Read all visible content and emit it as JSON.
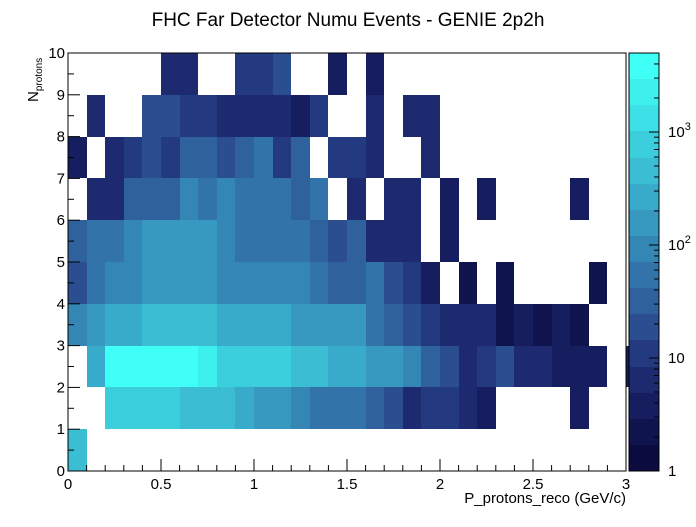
{
  "chart_data": {
    "type": "heatmap",
    "title": "FHC Far Detector Numu Events - GENIE 2p2h",
    "xlabel": "P_protons_reco (GeV/c)",
    "ylabel_main": "N",
    "ylabel_sub": "protons",
    "xlim": [
      0,
      3
    ],
    "ylim": [
      0,
      10
    ],
    "zlim": [
      1,
      5000
    ],
    "z_scale": "log",
    "x_bin_width": 0.1,
    "y_bin_width": 1,
    "x_ticks": [
      0,
      0.5,
      1,
      1.5,
      2,
      2.5,
      3
    ],
    "x_tick_labels": [
      "0",
      "0.5",
      "1",
      "1.5",
      "2",
      "2.5",
      "3"
    ],
    "y_ticks": [
      0,
      1,
      2,
      3,
      4,
      5,
      6,
      7,
      8,
      9,
      10
    ],
    "y_tick_labels": [
      "0",
      "1",
      "2",
      "3",
      "4",
      "5",
      "6",
      "7",
      "8",
      "9",
      "10"
    ],
    "colorbar_ticks": [
      {
        "value": 1,
        "base": "1",
        "exp": ""
      },
      {
        "value": 10,
        "base": "10",
        "exp": ""
      },
      {
        "value": 100,
        "base": "10",
        "exp": "2"
      },
      {
        "value": 1000,
        "base": "10",
        "exp": "3"
      }
    ],
    "palette": [
      "#0b0b3f",
      "#10144e",
      "#161e60",
      "#1d2a70",
      "#243a80",
      "#2b4e90",
      "#2f619d",
      "#3274a9",
      "#3487b5",
      "#3799c0",
      "#39abca",
      "#3bbdd3",
      "#3bcedc",
      "#3ce0e6",
      "#3df0ee",
      "#40fff6"
    ],
    "grid": false,
    "bins": [
      [
        0,
        0,
        500
      ],
      [
        2,
        1,
        800
      ],
      [
        3,
        1,
        800
      ],
      [
        4,
        1,
        800
      ],
      [
        5,
        1,
        800
      ],
      [
        6,
        1,
        500
      ],
      [
        7,
        1,
        500
      ],
      [
        8,
        1,
        350
      ],
      [
        9,
        1,
        300
      ],
      [
        10,
        1,
        200
      ],
      [
        11,
        1,
        150
      ],
      [
        12,
        1,
        100
      ],
      [
        13,
        1,
        70
      ],
      [
        14,
        1,
        60
      ],
      [
        15,
        1,
        50
      ],
      [
        16,
        1,
        30
      ],
      [
        17,
        1,
        20
      ],
      [
        18,
        1,
        8
      ],
      [
        19,
        1,
        10
      ],
      [
        20,
        1,
        10
      ],
      [
        21,
        1,
        5
      ],
      [
        22,
        1,
        3
      ],
      [
        27,
        1,
        3
      ],
      [
        1,
        2,
        300
      ],
      [
        2,
        2,
        3000
      ],
      [
        3,
        2,
        3000
      ],
      [
        4,
        2,
        3000
      ],
      [
        5,
        2,
        3000
      ],
      [
        6,
        2,
        3000
      ],
      [
        7,
        2,
        2000
      ],
      [
        8,
        2,
        1000
      ],
      [
        9,
        2,
        1000
      ],
      [
        10,
        2,
        700
      ],
      [
        11,
        2,
        600
      ],
      [
        12,
        2,
        500
      ],
      [
        13,
        2,
        400
      ],
      [
        14,
        2,
        300
      ],
      [
        15,
        2,
        300
      ],
      [
        16,
        2,
        150
      ],
      [
        17,
        2,
        150
      ],
      [
        18,
        2,
        80
      ],
      [
        19,
        2,
        30
      ],
      [
        20,
        2,
        20
      ],
      [
        21,
        2,
        7
      ],
      [
        22,
        2,
        10
      ],
      [
        23,
        2,
        15
      ],
      [
        24,
        2,
        5
      ],
      [
        25,
        2,
        5
      ],
      [
        26,
        2,
        4
      ],
      [
        27,
        2,
        3
      ],
      [
        28,
        2,
        3
      ],
      [
        30,
        2,
        3
      ],
      [
        0,
        3,
        80
      ],
      [
        1,
        3,
        150
      ],
      [
        2,
        3,
        300
      ],
      [
        3,
        3,
        300
      ],
      [
        4,
        3,
        400
      ],
      [
        5,
        3,
        400
      ],
      [
        6,
        3,
        400
      ],
      [
        7,
        3,
        400
      ],
      [
        8,
        3,
        300
      ],
      [
        9,
        3,
        300
      ],
      [
        10,
        3,
        300
      ],
      [
        11,
        3,
        300
      ],
      [
        12,
        3,
        150
      ],
      [
        13,
        3,
        150
      ],
      [
        14,
        3,
        150
      ],
      [
        15,
        3,
        150
      ],
      [
        16,
        3,
        70
      ],
      [
        17,
        3,
        40
      ],
      [
        18,
        3,
        20
      ],
      [
        19,
        3,
        10
      ],
      [
        20,
        3,
        5
      ],
      [
        21,
        3,
        5
      ],
      [
        22,
        3,
        5
      ],
      [
        23,
        3,
        2
      ],
      [
        24,
        3,
        3
      ],
      [
        25,
        3,
        2
      ],
      [
        26,
        3,
        3
      ],
      [
        27,
        3,
        2
      ],
      [
        0,
        4,
        20
      ],
      [
        1,
        4,
        60
      ],
      [
        2,
        4,
        100
      ],
      [
        3,
        4,
        120
      ],
      [
        4,
        4,
        150
      ],
      [
        5,
        4,
        200
      ],
      [
        6,
        4,
        150
      ],
      [
        7,
        4,
        150
      ],
      [
        8,
        4,
        120
      ],
      [
        9,
        4,
        120
      ],
      [
        10,
        4,
        120
      ],
      [
        11,
        4,
        100
      ],
      [
        12,
        4,
        100
      ],
      [
        13,
        4,
        70
      ],
      [
        14,
        4,
        40
      ],
      [
        15,
        4,
        40
      ],
      [
        16,
        4,
        60
      ],
      [
        17,
        4,
        15
      ],
      [
        18,
        4,
        10
      ],
      [
        19,
        4,
        3
      ],
      [
        21,
        4,
        2
      ],
      [
        23,
        4,
        2
      ],
      [
        28,
        4,
        2
      ],
      [
        0,
        5,
        30
      ],
      [
        1,
        5,
        50
      ],
      [
        2,
        5,
        60
      ],
      [
        3,
        5,
        80
      ],
      [
        4,
        5,
        150
      ],
      [
        5,
        5,
        150
      ],
      [
        6,
        5,
        150
      ],
      [
        7,
        5,
        150
      ],
      [
        8,
        5,
        80
      ],
      [
        9,
        5,
        60
      ],
      [
        10,
        5,
        60
      ],
      [
        11,
        5,
        50
      ],
      [
        12,
        5,
        60
      ],
      [
        13,
        5,
        30
      ],
      [
        14,
        5,
        20
      ],
      [
        15,
        5,
        25
      ],
      [
        16,
        5,
        5
      ],
      [
        17,
        5,
        8
      ],
      [
        18,
        5,
        6
      ],
      [
        20,
        5,
        3
      ],
      [
        1,
        6,
        8
      ],
      [
        2,
        6,
        7
      ],
      [
        3,
        6,
        30
      ],
      [
        4,
        6,
        40
      ],
      [
        5,
        6,
        40
      ],
      [
        6,
        6,
        100
      ],
      [
        7,
        6,
        50
      ],
      [
        8,
        6,
        100
      ],
      [
        9,
        6,
        50
      ],
      [
        10,
        6,
        50
      ],
      [
        11,
        6,
        70
      ],
      [
        12,
        6,
        30
      ],
      [
        13,
        6,
        50
      ],
      [
        15,
        6,
        5
      ],
      [
        17,
        6,
        6
      ],
      [
        18,
        6,
        6
      ],
      [
        20,
        6,
        3
      ],
      [
        22,
        6,
        3
      ],
      [
        27,
        6,
        3
      ],
      [
        0,
        7,
        3
      ],
      [
        2,
        7,
        6
      ],
      [
        3,
        7,
        10
      ],
      [
        4,
        7,
        20
      ],
      [
        5,
        7,
        10
      ],
      [
        6,
        7,
        30
      ],
      [
        7,
        7,
        40
      ],
      [
        8,
        7,
        20
      ],
      [
        9,
        7,
        40
      ],
      [
        10,
        7,
        70
      ],
      [
        11,
        7,
        10
      ],
      [
        12,
        7,
        30
      ],
      [
        14,
        7,
        10
      ],
      [
        15,
        7,
        10
      ],
      [
        16,
        7,
        8
      ],
      [
        19,
        7,
        5
      ],
      [
        1,
        8,
        5
      ],
      [
        4,
        8,
        20
      ],
      [
        5,
        8,
        20
      ],
      [
        6,
        8,
        10
      ],
      [
        7,
        8,
        10
      ],
      [
        8,
        8,
        5
      ],
      [
        9,
        8,
        6
      ],
      [
        10,
        8,
        8
      ],
      [
        11,
        8,
        8
      ],
      [
        12,
        8,
        4
      ],
      [
        13,
        8,
        10
      ],
      [
        16,
        8,
        5
      ],
      [
        18,
        8,
        5
      ],
      [
        19,
        8,
        5
      ],
      [
        5,
        9,
        8
      ],
      [
        6,
        9,
        8
      ],
      [
        9,
        9,
        10
      ],
      [
        10,
        9,
        10
      ],
      [
        11,
        9,
        20
      ],
      [
        14,
        9,
        4
      ],
      [
        16,
        9,
        3
      ]
    ]
  }
}
